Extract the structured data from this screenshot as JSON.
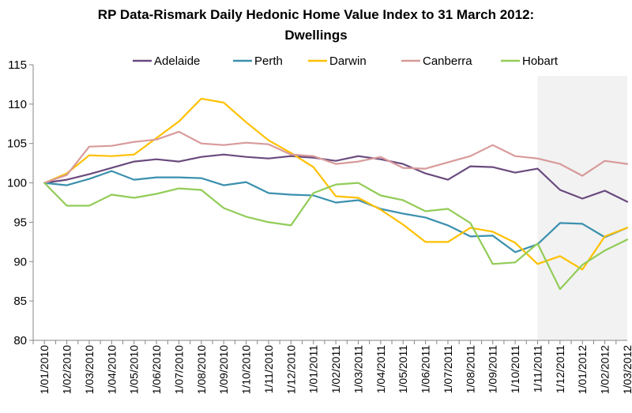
{
  "chart_data": {
    "type": "line",
    "title": "RP Data-Rismark Daily Hedonic Home Value Index to 31 March 2012:",
    "subtitle": "Dwellings",
    "xlabel": "",
    "ylabel": "",
    "ylim": [
      80,
      115
    ],
    "yticks": [
      "80",
      "85",
      "90",
      "95",
      "100",
      "105",
      "110",
      "115"
    ],
    "grid": false,
    "legend_position": "top",
    "shaded_region": {
      "from": "1/11/2011",
      "to": "1/03/2012",
      "color": "#f2f2f2"
    },
    "categories": [
      "1/01/2010",
      "1/02/2010",
      "1/03/2010",
      "1/04/2010",
      "1/05/2010",
      "1/06/2010",
      "1/07/2010",
      "1/08/2010",
      "1/09/2010",
      "1/10/2010",
      "1/11/2010",
      "1/12/2010",
      "1/01/2011",
      "1/02/2011",
      "1/03/2011",
      "1/04/2011",
      "1/05/2011",
      "1/06/2011",
      "1/07/2011",
      "1/08/2011",
      "1/09/2011",
      "1/10/2011",
      "1/11/2011",
      "1/12/2011",
      "1/01/2012",
      "1/02/2012",
      "1/03/2012"
    ],
    "x_half_steps": [
      0,
      0.5,
      1,
      1.5,
      2,
      2.5,
      3,
      3.5,
      4,
      4.5,
      5,
      5.5,
      6,
      6.5,
      7,
      7.5,
      8,
      8.5,
      9,
      9.5,
      10,
      10.5,
      11,
      11.5,
      12,
      12.5,
      13,
      13.5,
      14,
      14.5,
      15,
      15.5,
      16,
      16.5,
      17,
      17.5,
      18,
      18.5,
      19,
      19.5,
      20,
      20.5,
      21,
      21.5,
      22,
      22.5,
      23,
      23.5,
      24,
      24.5,
      25,
      25.5,
      26
    ],
    "series": [
      {
        "name": "Adelaide",
        "color": "#6a4a7e",
        "values": [
          100.0,
          100.4,
          101.1,
          101.9,
          102.7,
          103.0,
          102.7,
          103.3,
          103.6,
          103.3,
          103.1,
          103.4,
          103.2,
          102.8,
          103.4,
          103.0,
          102.4,
          101.2,
          100.4,
          102.1,
          102.0,
          101.3,
          101.8,
          99.1,
          98.0,
          99.0,
          97.6
        ]
      },
      {
        "name": "Perth",
        "color": "#3b90ad",
        "values": [
          100.0,
          99.7,
          100.5,
          101.5,
          100.4,
          100.7,
          100.7,
          100.6,
          99.7,
          100.1,
          98.7,
          98.5,
          98.4,
          97.5,
          97.8,
          96.7,
          96.1,
          95.6,
          94.6,
          93.2,
          93.3,
          91.2,
          92.2,
          94.9,
          94.8,
          93.1,
          94.3
        ]
      },
      {
        "name": "Darwin",
        "color": "#ffc000",
        "values": [
          100.0,
          101.2,
          103.5,
          103.4,
          103.6,
          105.7,
          107.8,
          110.7,
          110.2,
          107.7,
          105.4,
          103.8,
          102.0,
          98.3,
          98.1,
          96.6,
          94.7,
          92.5,
          92.5,
          94.3,
          93.8,
          92.4,
          89.7,
          90.7,
          89.0,
          93.2,
          94.3
        ]
      },
      {
        "name": "Canberra",
        "color": "#d89a9a",
        "values": [
          100.0,
          101.0,
          104.6,
          104.7,
          105.2,
          105.5,
          106.5,
          105.0,
          104.8,
          105.1,
          104.9,
          103.6,
          103.4,
          102.4,
          102.7,
          103.3,
          101.9,
          101.8,
          102.6,
          103.4,
          104.8,
          103.4,
          103.1,
          102.4,
          100.9,
          102.8,
          102.4
        ]
      },
      {
        "name": "Hobart",
        "color": "#92cc57",
        "values": [
          100.0,
          97.1,
          97.1,
          98.5,
          98.1,
          98.6,
          99.3,
          99.1,
          96.8,
          95.7,
          95.0,
          94.6,
          98.7,
          99.8,
          100.0,
          98.4,
          97.8,
          96.4,
          96.7,
          94.9,
          89.7,
          89.9,
          92.3,
          86.5,
          89.6,
          91.4,
          92.8
        ]
      }
    ]
  }
}
